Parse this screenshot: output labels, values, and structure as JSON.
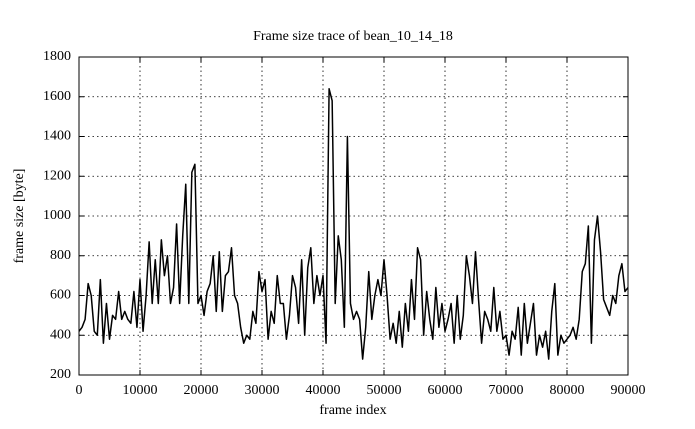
{
  "chart_data": {
    "type": "line",
    "title": "Frame size trace of bean_10_14_18",
    "x_label": "frame index",
    "y_label": "frame size [byte]",
    "x": [
      0,
      500,
      1000,
      1500,
      2000,
      2500,
      3000,
      3500,
      4000,
      4500,
      5000,
      5500,
      6000,
      6500,
      7000,
      7500,
      8000,
      8500,
      9000,
      9500,
      10000,
      10500,
      11000,
      11500,
      12000,
      12500,
      13000,
      13500,
      14000,
      14500,
      15000,
      15500,
      16000,
      16500,
      17000,
      17500,
      18000,
      18500,
      19000,
      19500,
      20000,
      20500,
      21000,
      21500,
      22000,
      22500,
      23000,
      23500,
      24000,
      24500,
      25000,
      25500,
      26000,
      26500,
      27000,
      27500,
      28000,
      28500,
      29000,
      29500,
      30000,
      30500,
      31000,
      31500,
      32000,
      32500,
      33000,
      33500,
      34000,
      34500,
      35000,
      35500,
      36000,
      36500,
      37000,
      37500,
      38000,
      38500,
      39000,
      39500,
      40000,
      40500,
      41000,
      41500,
      42000,
      42500,
      43000,
      43500,
      44000,
      44500,
      45000,
      45500,
      46000,
      46500,
      47000,
      47500,
      48000,
      48500,
      49000,
      49500,
      50000,
      50500,
      51000,
      51500,
      52000,
      52500,
      53000,
      53500,
      54000,
      54500,
      55000,
      55500,
      56000,
      56500,
      57000,
      57500,
      58000,
      58500,
      59000,
      59500,
      60000,
      60500,
      61000,
      61500,
      62000,
      62500,
      63000,
      63500,
      64000,
      64500,
      65000,
      65500,
      66000,
      66500,
      67000,
      67500,
      68000,
      68500,
      69000,
      69500,
      70000,
      70500,
      71000,
      71500,
      72000,
      72500,
      73000,
      73500,
      74000,
      74500,
      75000,
      75500,
      76000,
      76500,
      77000,
      77500,
      78000,
      78500,
      79000,
      79500,
      80000,
      80500,
      81000,
      81500,
      82000,
      82500,
      83000,
      83500,
      84000,
      84500,
      85000,
      85500,
      86000,
      86500,
      87000,
      87500,
      88000,
      88500,
      89000,
      89500,
      90000
    ],
    "series": [
      {
        "name": "frame size",
        "color": "#000000",
        "values": [
          420,
          440,
          480,
          660,
          600,
          420,
          400,
          680,
          360,
          560,
          380,
          500,
          480,
          620,
          480,
          520,
          480,
          460,
          620,
          440,
          680,
          420,
          600,
          870,
          560,
          780,
          560,
          880,
          700,
          800,
          560,
          640,
          960,
          560,
          900,
          1160,
          560,
          1220,
          1260,
          560,
          600,
          500,
          620,
          660,
          800,
          520,
          820,
          520,
          700,
          720,
          840,
          600,
          560,
          440,
          360,
          400,
          380,
          520,
          460,
          720,
          620,
          680,
          380,
          520,
          460,
          700,
          560,
          560,
          380,
          500,
          700,
          640,
          460,
          780,
          400,
          740,
          840,
          560,
          700,
          600,
          700,
          360,
          1640,
          1580,
          560,
          900,
          780,
          440,
          1400,
          560,
          480,
          520,
          480,
          280,
          440,
          720,
          480,
          600,
          680,
          600,
          780,
          600,
          380,
          460,
          360,
          520,
          340,
          560,
          420,
          680,
          480,
          840,
          780,
          400,
          620,
          480,
          380,
          640,
          440,
          560,
          420,
          480,
          560,
          360,
          600,
          380,
          500,
          800,
          700,
          560,
          820,
          580,
          360,
          520,
          480,
          420,
          640,
          420,
          520,
          380,
          400,
          300,
          420,
          380,
          540,
          300,
          560,
          360,
          460,
          560,
          300,
          400,
          340,
          420,
          280,
          520,
          660,
          300,
          400,
          360,
          380,
          400,
          440,
          380,
          480,
          720,
          760,
          950,
          360,
          880,
          1000,
          820,
          580,
          540,
          500,
          600,
          560,
          700,
          760,
          620,
          640
        ]
      }
    ],
    "xlim": [
      0,
      90000
    ],
    "ylim": [
      200,
      1800
    ],
    "xticks": [
      0,
      10000,
      20000,
      30000,
      40000,
      50000,
      60000,
      70000,
      80000,
      90000
    ],
    "yticks": [
      200,
      400,
      600,
      800,
      1000,
      1200,
      1400,
      1600,
      1800
    ],
    "grid": true
  }
}
